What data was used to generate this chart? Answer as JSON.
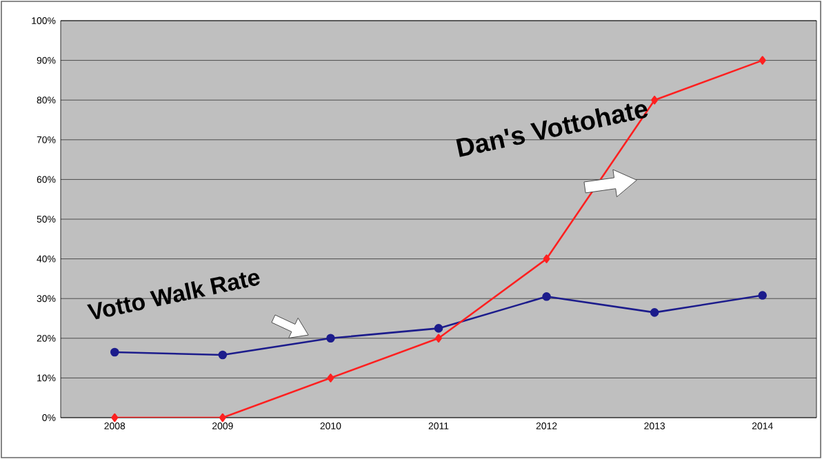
{
  "chart_data": {
    "type": "line",
    "categories": [
      "2008",
      "2009",
      "2010",
      "2011",
      "2012",
      "2013",
      "2014"
    ],
    "series": [
      {
        "name": "Votto Walk Rate",
        "color": "#1c1c8c",
        "marker": "circle",
        "values": [
          16.5,
          15.8,
          20,
          22.5,
          30.5,
          26.5,
          30.8
        ]
      },
      {
        "name": "Dan's Vottohate",
        "color": "#ff2020",
        "marker": "diamond",
        "values": [
          0,
          0,
          10,
          20,
          40,
          80,
          90
        ]
      }
    ],
    "ylim": [
      0,
      100
    ],
    "yticks": [
      {
        "value": 0,
        "label": "0%"
      },
      {
        "value": 10,
        "label": "10%"
      },
      {
        "value": 20,
        "label": "20%"
      },
      {
        "value": 30,
        "label": "30%"
      },
      {
        "value": 40,
        "label": "40%"
      },
      {
        "value": 50,
        "label": "50%"
      },
      {
        "value": 60,
        "label": "60%"
      },
      {
        "value": 70,
        "label": "70%"
      },
      {
        "value": 80,
        "label": "80%"
      },
      {
        "value": 90,
        "label": "90%"
      },
      {
        "value": 100,
        "label": "100%"
      }
    ],
    "grid": "y",
    "legend": false,
    "line_style": "solid"
  }
}
